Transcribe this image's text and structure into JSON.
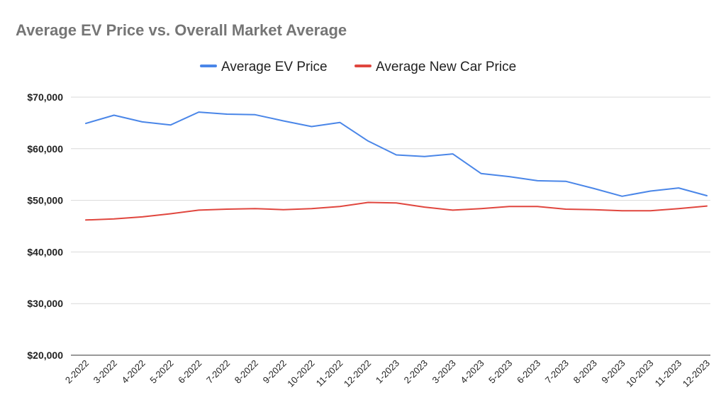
{
  "chart_data": {
    "type": "line",
    "title": "Average EV Price vs. Overall Market Average",
    "xlabel": "",
    "ylabel": "",
    "ylim": [
      20000,
      70000
    ],
    "y_ticks": [
      "$20,000",
      "$30,000",
      "$40,000",
      "$50,000",
      "$60,000",
      "$70,000"
    ],
    "y_tick_values": [
      20000,
      30000,
      40000,
      50000,
      60000,
      70000
    ],
    "grid": true,
    "legend_position": "top-center",
    "categories": [
      "2-2022",
      "3-2022",
      "4-2022",
      "5-2022",
      "6-2022",
      "7-2022",
      "8-2022",
      "9-2022",
      "10-2022",
      "11-2022",
      "12-2022",
      "1-2023",
      "2-2023",
      "3-2023",
      "4-2023",
      "5-2023",
      "6-2023",
      "7-2023",
      "8-2023",
      "9-2023",
      "10-2023",
      "11-2023",
      "12-2023"
    ],
    "series": [
      {
        "name": "Average EV Price",
        "color": "#4a86e8",
        "values": [
          64900,
          66500,
          65200,
          64600,
          67100,
          66700,
          66600,
          65400,
          64300,
          65100,
          61500,
          58800,
          58500,
          59000,
          55200,
          54600,
          53800,
          53700,
          52300,
          50800,
          51800,
          52400,
          50900
        ]
      },
      {
        "name": "Average New Car Price",
        "color": "#e0463e",
        "values": [
          46200,
          46400,
          46800,
          47400,
          48100,
          48300,
          48400,
          48200,
          48400,
          48800,
          49600,
          49500,
          48700,
          48100,
          48400,
          48800,
          48800,
          48300,
          48200,
          48000,
          48000,
          48400,
          48900
        ]
      }
    ]
  }
}
